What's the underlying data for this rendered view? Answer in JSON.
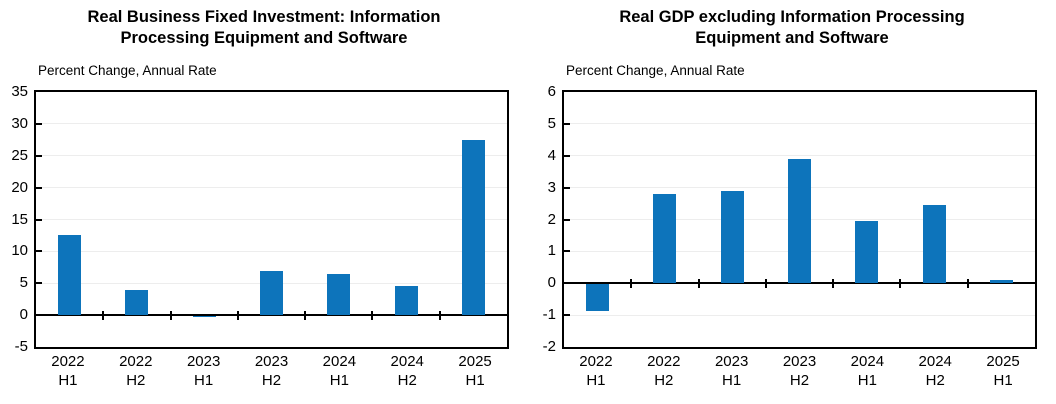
{
  "figure": {
    "background": "#ffffff",
    "text_color": "#000000"
  },
  "chart_data": [
    {
      "type": "bar",
      "title": "Real Business Fixed Investment: Information Processing Equipment and Software",
      "title_lines": [
        "Real Business Fixed Investment: Information",
        "Processing Equipment and Software"
      ],
      "ylabel": "Percent Change, Annual Rate",
      "categories": [
        "2022 H1",
        "2022 H2",
        "2023 H1",
        "2023 H2",
        "2024 H1",
        "2024 H2",
        "2025 H1"
      ],
      "values": [
        12.5,
        3.9,
        -0.1,
        7.0,
        6.5,
        4.6,
        27.5
      ],
      "ylim": [
        -5,
        35
      ],
      "ytick_step": 5,
      "bar_color": "#0d74bb",
      "grid": true,
      "legend": "none"
    },
    {
      "type": "bar",
      "title": "Real GDP excluding Information Processing Equipment and Software",
      "title_lines": [
        "Real GDP excluding Information Processing",
        "Equipment and Software"
      ],
      "ylabel": "Percent Change, Annual Rate",
      "categories": [
        "2022 H1",
        "2022 H2",
        "2023 H1",
        "2023 H2",
        "2024 H1",
        "2024 H2",
        "2025 H1"
      ],
      "values": [
        -0.85,
        2.8,
        2.9,
        3.9,
        1.95,
        2.45,
        0.1
      ],
      "ylim": [
        -2,
        6
      ],
      "ytick_step": 1,
      "bar_color": "#0d74bb",
      "grid": true,
      "legend": "none"
    }
  ]
}
